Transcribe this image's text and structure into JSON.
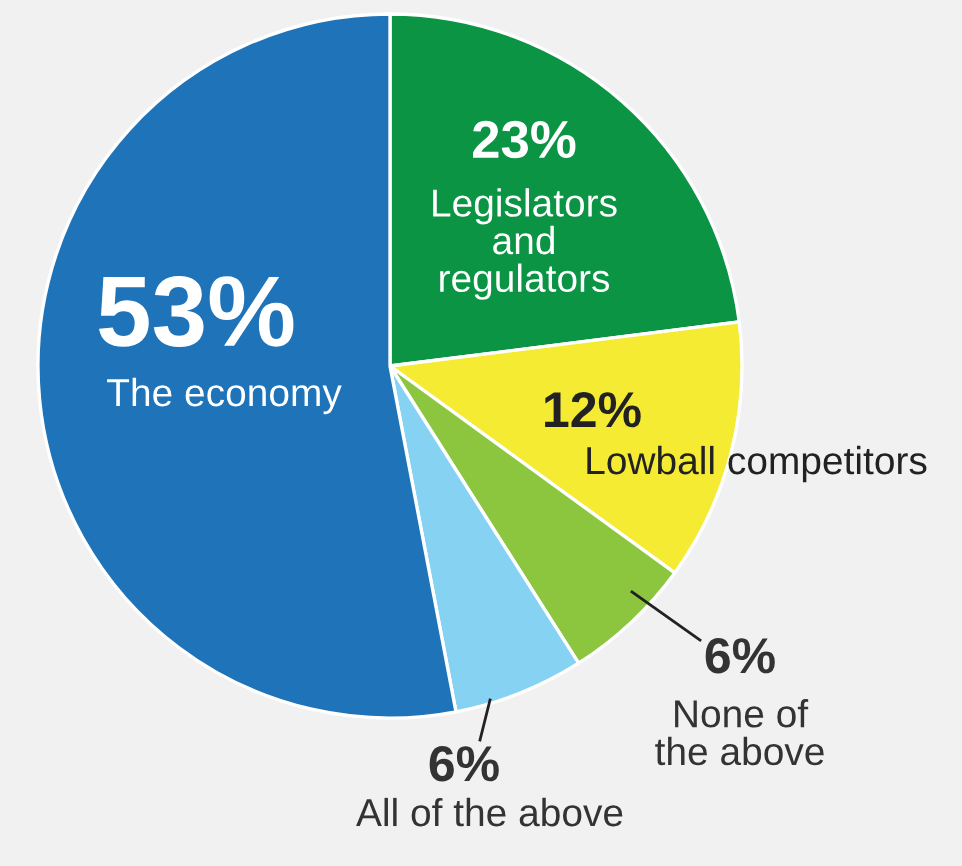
{
  "chart_data": {
    "type": "pie",
    "categories": [
      "Legislators\nand\nregulators",
      "Lowball competitors",
      "None of\nthe above",
      "All of the above",
      "The economy"
    ],
    "values": [
      23,
      12,
      6,
      6,
      53
    ],
    "value_labels": [
      "23%",
      "12%",
      "6%",
      "6%",
      "53%"
    ],
    "colors": [
      "#0b9444",
      "#f5eb33",
      "#8cc63f",
      "#86d2f2",
      "#1e73b9"
    ]
  }
}
